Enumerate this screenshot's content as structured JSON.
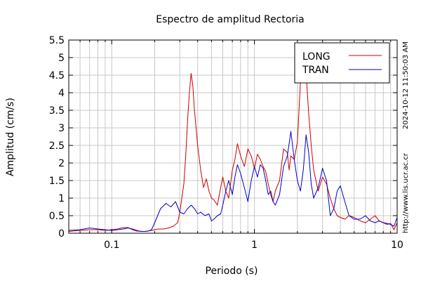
{
  "chart_data": {
    "type": "line",
    "title": "Espectro de amplitud Rectoria",
    "xlabel": "Periodo (s)",
    "ylabel": "Amplitud (cm/s)",
    "xscale": "log",
    "xlim": [
      0.05,
      10
    ],
    "ylim": [
      0,
      5.5
    ],
    "grid": true,
    "legend_position": "top-right",
    "x_ticks": [
      {
        "value": 0.1,
        "label": "0.1"
      },
      {
        "value": 1,
        "label": "1"
      },
      {
        "value": 10,
        "label": "10"
      }
    ],
    "y_ticks": [
      {
        "value": 0,
        "label": "0"
      },
      {
        "value": 0.5,
        "label": "0.5"
      },
      {
        "value": 1,
        "label": "1"
      },
      {
        "value": 1.5,
        "label": "1.5"
      },
      {
        "value": 2,
        "label": "2"
      },
      {
        "value": 2.5,
        "label": "2.5"
      },
      {
        "value": 3,
        "label": "3"
      },
      {
        "value": 3.5,
        "label": "3.5"
      },
      {
        "value": 4,
        "label": "4"
      },
      {
        "value": 4.5,
        "label": "4.5"
      },
      {
        "value": 5,
        "label": "5"
      },
      {
        "value": 5.5,
        "label": "5.5"
      }
    ],
    "series": [
      {
        "name": "LONG",
        "color": "#cc0000",
        "x": [
          0.05,
          0.06,
          0.07,
          0.08,
          0.09,
          0.1,
          0.11,
          0.12,
          0.13,
          0.14,
          0.15,
          0.17,
          0.19,
          0.21,
          0.23,
          0.25,
          0.27,
          0.29,
          0.3,
          0.31,
          0.32,
          0.33,
          0.34,
          0.35,
          0.36,
          0.37,
          0.38,
          0.4,
          0.42,
          0.44,
          0.46,
          0.48,
          0.5,
          0.52,
          0.55,
          0.58,
          0.6,
          0.63,
          0.66,
          0.7,
          0.73,
          0.76,
          0.8,
          0.85,
          0.9,
          0.95,
          1.0,
          1.05,
          1.1,
          1.15,
          1.2,
          1.25,
          1.3,
          1.35,
          1.4,
          1.5,
          1.6,
          1.7,
          1.75,
          1.8,
          1.9,
          2.0,
          2.1,
          2.2,
          2.3,
          2.4,
          2.5,
          2.6,
          2.8,
          3.0,
          3.2,
          3.4,
          3.6,
          3.8,
          4.0,
          4.3,
          4.6,
          5.0,
          5.5,
          6.0,
          6.5,
          7.0,
          7.5,
          8.0,
          8.5,
          9.0,
          9.5,
          10.0
        ],
        "y": [
          0.05,
          0.08,
          0.1,
          0.1,
          0.08,
          0.1,
          0.12,
          0.16,
          0.16,
          0.1,
          0.06,
          0.05,
          0.08,
          0.12,
          0.12,
          0.15,
          0.2,
          0.3,
          0.6,
          1.0,
          1.4,
          2.2,
          3.2,
          4.0,
          4.55,
          4.2,
          3.5,
          2.5,
          1.8,
          1.3,
          1.55,
          1.2,
          1.0,
          0.95,
          0.8,
          1.3,
          1.6,
          1.2,
          1.0,
          1.8,
          2.1,
          2.55,
          2.2,
          1.9,
          2.4,
          2.2,
          1.85,
          2.25,
          2.1,
          1.9,
          1.75,
          1.4,
          1.1,
          0.9,
          1.2,
          1.5,
          2.4,
          2.3,
          1.8,
          2.2,
          2.1,
          2.6,
          4.3,
          4.95,
          4.6,
          3.4,
          2.5,
          1.8,
          1.2,
          1.6,
          1.4,
          1.0,
          0.7,
          0.5,
          0.45,
          0.4,
          0.5,
          0.45,
          0.35,
          0.3,
          0.4,
          0.5,
          0.35,
          0.3,
          0.25,
          0.28,
          0.1,
          0.3
        ]
      },
      {
        "name": "TRAN",
        "color": "#0000cc",
        "x": [
          0.05,
          0.06,
          0.07,
          0.08,
          0.09,
          0.1,
          0.11,
          0.12,
          0.13,
          0.14,
          0.15,
          0.16,
          0.17,
          0.18,
          0.19,
          0.2,
          0.22,
          0.24,
          0.26,
          0.28,
          0.3,
          0.32,
          0.34,
          0.36,
          0.38,
          0.4,
          0.42,
          0.45,
          0.48,
          0.5,
          0.52,
          0.55,
          0.58,
          0.6,
          0.63,
          0.66,
          0.7,
          0.73,
          0.76,
          0.8,
          0.85,
          0.9,
          0.95,
          1.0,
          1.05,
          1.1,
          1.15,
          1.2,
          1.25,
          1.3,
          1.35,
          1.4,
          1.5,
          1.6,
          1.7,
          1.75,
          1.8,
          1.9,
          2.0,
          2.1,
          2.2,
          2.3,
          2.4,
          2.5,
          2.6,
          2.8,
          3.0,
          3.2,
          3.4,
          3.6,
          3.8,
          4.0,
          4.3,
          4.6,
          5.0,
          5.5,
          6.0,
          6.5,
          7.0,
          7.5,
          8.0,
          8.5,
          9.0,
          9.5,
          10.0
        ],
        "y": [
          0.08,
          0.1,
          0.15,
          0.12,
          0.1,
          0.08,
          0.1,
          0.12,
          0.15,
          0.12,
          0.08,
          0.05,
          0.05,
          0.06,
          0.1,
          0.3,
          0.7,
          0.85,
          0.75,
          0.9,
          0.6,
          0.55,
          0.7,
          0.8,
          0.7,
          0.55,
          0.6,
          0.5,
          0.55,
          0.35,
          0.4,
          0.5,
          0.55,
          0.8,
          1.2,
          1.5,
          1.1,
          1.6,
          1.95,
          1.7,
          1.3,
          0.9,
          1.5,
          1.9,
          1.6,
          1.95,
          1.85,
          1.5,
          1.1,
          1.2,
          0.9,
          0.8,
          1.1,
          1.9,
          2.2,
          2.55,
          2.9,
          2.1,
          1.5,
          1.2,
          1.8,
          2.8,
          2.3,
          1.4,
          1.0,
          1.3,
          1.85,
          1.5,
          0.5,
          0.7,
          1.2,
          1.35,
          0.9,
          0.5,
          0.4,
          0.4,
          0.5,
          0.35,
          0.3,
          0.35,
          0.3,
          0.28,
          0.25,
          0.2,
          0.45
        ]
      }
    ]
  },
  "side_texts": {
    "timestamp": "2024-10-12 11:50:03 AM",
    "url": "http://www.lis.ucr.ac.cr"
  }
}
